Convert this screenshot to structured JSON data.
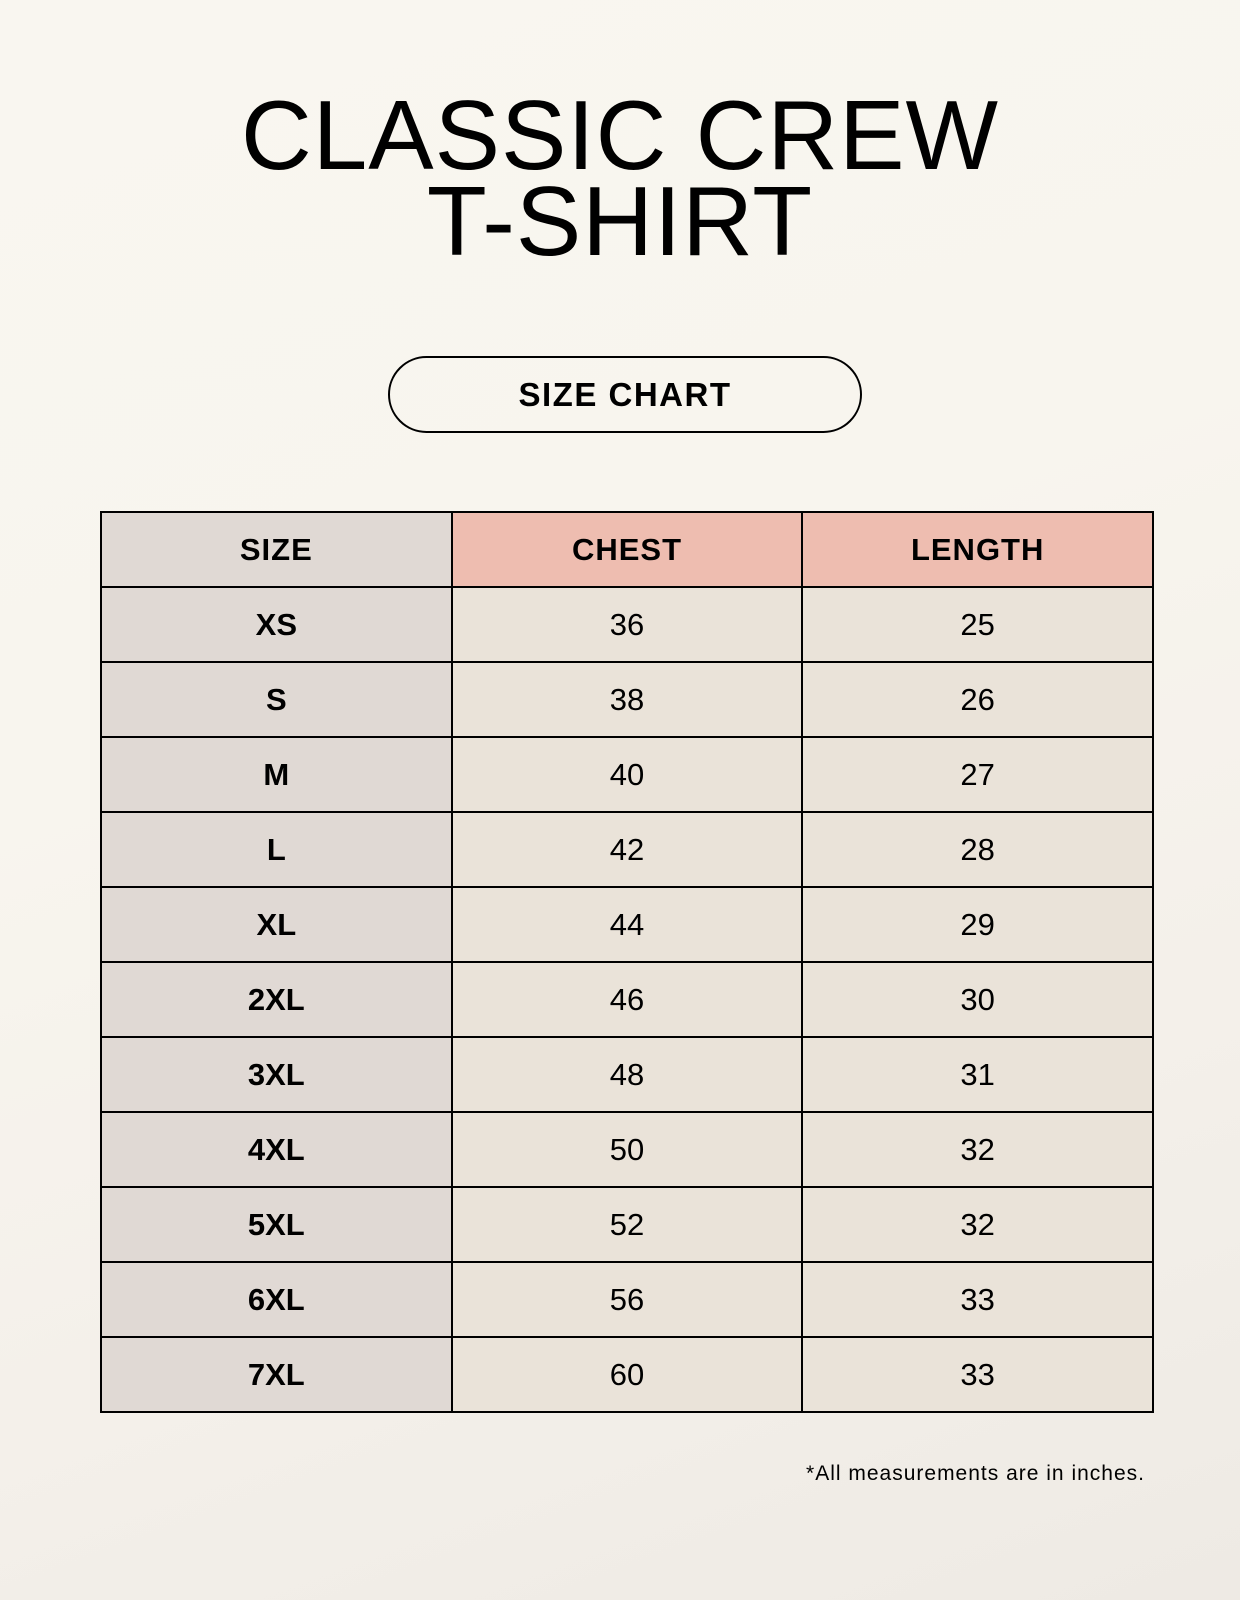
{
  "title_lines": [
    "CLASSIC CREW",
    "T-SHIRT"
  ],
  "subtitle": "SIZE CHART",
  "table": {
    "headers": [
      "SIZE",
      "CHEST",
      "LENGTH"
    ],
    "rows": [
      [
        "XS",
        "36",
        "25"
      ],
      [
        "S",
        "38",
        "26"
      ],
      [
        "M",
        "40",
        "27"
      ],
      [
        "L",
        "42",
        "28"
      ],
      [
        "XL",
        "44",
        "29"
      ],
      [
        "2XL",
        "46",
        "30"
      ],
      [
        "3XL",
        "48",
        "31"
      ],
      [
        "4XL",
        "50",
        "32"
      ],
      [
        "5XL",
        "52",
        "32"
      ],
      [
        "6XL",
        "56",
        "33"
      ],
      [
        "7XL",
        "60",
        "33"
      ]
    ]
  },
  "footnote": "*All measurements are in inches.",
  "colors": {
    "size_column": "#e0d9d4",
    "header_accent": "#eebdb0",
    "cell": "#eae3d9"
  }
}
